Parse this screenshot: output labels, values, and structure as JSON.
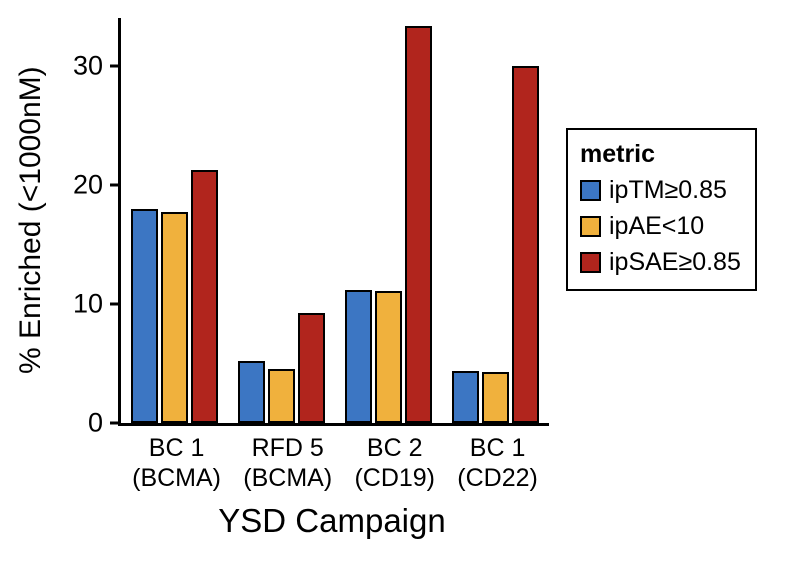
{
  "chart_data": {
    "type": "bar",
    "title": "",
    "xlabel": "YSD Campaign",
    "ylabel": "% Enriched (<1000nM)",
    "categories": [
      "BC 1\n(BCMA)",
      "RFD 5\n(BCMA)",
      "BC 2\n(CD19)",
      "BC 1\n(CD22)"
    ],
    "series": [
      {
        "name": "ipTM≥0.85",
        "color": "#3C76C3",
        "values": [
          18.0,
          5.2,
          11.2,
          4.4
        ]
      },
      {
        "name": "ipAE<10",
        "color": "#F0B13D",
        "values": [
          17.7,
          4.5,
          11.1,
          4.3
        ]
      },
      {
        "name": "ipSAE≥0.85",
        "color": "#B1251D",
        "values": [
          21.2,
          9.2,
          33.3,
          30.0
        ]
      }
    ],
    "ylim": [
      0,
      34
    ],
    "yticks": [
      0,
      10,
      20,
      30
    ],
    "legend_title": "metric",
    "legend_position": "right",
    "grid": false,
    "axis_color": "#000000",
    "background_color": "#ffffff"
  }
}
